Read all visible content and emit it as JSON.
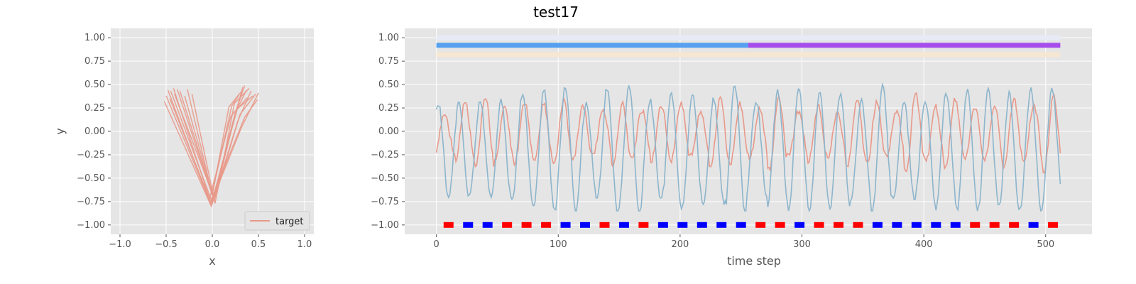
{
  "figure": {
    "title": "test17"
  },
  "chart_data": [
    {
      "type": "line",
      "xlabel": "x",
      "ylabel": "y",
      "xlim": [
        -1.1,
        1.1
      ],
      "ylim": [
        -1.1,
        1.1
      ],
      "xticks": [
        -1.0,
        -0.5,
        0.0,
        0.5,
        1.0
      ],
      "xtick_labels": [
        "−1.0",
        "−0.5",
        "0.0",
        "0.5",
        "1.0"
      ],
      "yticks": [
        1.0,
        0.75,
        0.5,
        0.25,
        0.0,
        -0.25,
        -0.5,
        -0.75,
        -1.0
      ],
      "ytick_labels": [
        "1.00",
        "0.75",
        "0.50",
        "0.25",
        "0.00",
        "−0.25",
        "−0.50",
        "−0.75",
        "−1.00"
      ],
      "grid": true,
      "legend": {
        "position": "lower-right",
        "entries": [
          {
            "label": "target",
            "color": "#E8998A"
          }
        ]
      },
      "series": [
        {
          "name": "target",
          "color": "#E8998A",
          "description_points": [
            {
              "x": -0.52,
              "y": 0.32
            },
            {
              "x": -0.3,
              "y": -0.1
            },
            {
              "x": 0.0,
              "y": -0.78
            },
            {
              "x": 0.25,
              "y": 0.1
            },
            {
              "x": 0.5,
              "y": 0.41
            }
          ],
          "strokes": [
            [
              [
                -0.52,
                0.32
              ],
              [
                -0.02,
                -0.78
              ],
              [
                0.32,
                0.05
              ],
              [
                0.5,
                0.41
              ]
            ],
            [
              [
                -0.48,
                0.44
              ],
              [
                -0.01,
                -0.8
              ],
              [
                0.28,
                0.12
              ],
              [
                0.42,
                0.43
              ]
            ],
            [
              [
                -0.45,
                0.43
              ],
              [
                0.0,
                -0.76
              ],
              [
                0.25,
                0.2
              ],
              [
                0.35,
                0.49
              ]
            ],
            [
              [
                -0.42,
                0.46
              ],
              [
                -0.03,
                -0.72
              ],
              [
                0.2,
                0.16
              ],
              [
                0.38,
                0.36
              ]
            ],
            [
              [
                -0.38,
                0.45
              ],
              [
                0.02,
                -0.74
              ],
              [
                0.3,
                0.18
              ],
              [
                0.47,
                0.4
              ]
            ],
            [
              [
                -0.5,
                0.38
              ],
              [
                -0.01,
                -0.79
              ],
              [
                0.22,
                0.08
              ],
              [
                0.33,
                0.47
              ]
            ],
            [
              [
                -0.35,
                0.43
              ],
              [
                0.01,
                -0.7
              ],
              [
                0.27,
                0.24
              ],
              [
                0.44,
                0.38
              ]
            ],
            [
              [
                -0.27,
                0.45
              ],
              [
                0.0,
                -0.68
              ],
              [
                0.18,
                0.26
              ],
              [
                0.31,
                0.42
              ]
            ],
            [
              [
                -0.22,
                0.4
              ],
              [
                0.03,
                -0.77
              ],
              [
                0.24,
                0.3
              ],
              [
                0.4,
                0.46
              ]
            ],
            [
              [
                -0.46,
                0.35
              ],
              [
                -0.02,
                -0.75
              ],
              [
                0.35,
                0.15
              ],
              [
                0.49,
                0.34
              ]
            ],
            [
              [
                -0.3,
                0.38
              ],
              [
                0.02,
                -0.73
              ],
              [
                0.26,
                0.22
              ],
              [
                0.37,
                0.44
              ]
            ],
            [
              [
                -0.41,
                0.4
              ],
              [
                0.0,
                -0.66
              ],
              [
                0.21,
                0.27
              ],
              [
                0.29,
                0.39
              ]
            ]
          ]
        }
      ]
    },
    {
      "type": "line",
      "xlabel": "time step",
      "ylabel": "",
      "xlim": [
        -26,
        538
      ],
      "ylim": [
        -1.1,
        1.1
      ],
      "xticks": [
        0,
        100,
        200,
        300,
        400,
        500
      ],
      "xtick_labels": [
        "0",
        "100",
        "200",
        "300",
        "400",
        "500"
      ],
      "yticks": [
        1.0,
        0.75,
        0.5,
        0.25,
        0.0,
        -0.25,
        -0.5,
        -0.75,
        -1.0
      ],
      "ytick_labels": [
        "1.00",
        "0.75",
        "0.50",
        "0.25",
        "0.00",
        "−0.25",
        "−0.50",
        "−0.75",
        "−1.00"
      ],
      "grid": true,
      "bands": [
        {
          "y": 1.0,
          "color": "#E8EAF6",
          "x": [
            0,
            512
          ]
        },
        {
          "y": 0.92,
          "segments": [
            {
              "x": [
                0,
                256
              ],
              "color": "#57A0F0"
            },
            {
              "x": [
                256,
                512
              ],
              "color": "#A64EEB"
            }
          ]
        },
        {
          "y": 0.82,
          "color": "#F5E7D2",
          "x": [
            0,
            512
          ]
        }
      ],
      "markers": {
        "y": -1.0,
        "positions": [
          10,
          26,
          42,
          58,
          74,
          90,
          106,
          122,
          138,
          154,
          170,
          186,
          202,
          218,
          234,
          250,
          266,
          282,
          298,
          314,
          330,
          346,
          362,
          378,
          394,
          410,
          426,
          442,
          458,
          474,
          490,
          506
        ],
        "colors": [
          "red",
          "blue",
          "blue",
          "red",
          "red",
          "red",
          "blue",
          "blue",
          "red",
          "blue",
          "red",
          "blue",
          "blue",
          "blue",
          "blue",
          "blue",
          "red",
          "red",
          "blue",
          "red",
          "red",
          "red",
          "blue",
          "blue",
          "blue",
          "blue",
          "blue",
          "red",
          "red",
          "red",
          "blue",
          "red"
        ]
      },
      "series": [
        {
          "name": "orange",
          "color": "#E8998A",
          "period": 16.2,
          "amplitude": [
            0.22,
            0.42
          ],
          "offset": -0.02,
          "range": [
            -0.5,
            0.5
          ],
          "length": 512
        },
        {
          "name": "blue",
          "color": "#8DB5CC",
          "period": 17.4,
          "amplitude": [
            0.5,
            0.7
          ],
          "offset": -0.2,
          "range": [
            -0.85,
            0.5
          ],
          "length": 512
        }
      ]
    }
  ]
}
